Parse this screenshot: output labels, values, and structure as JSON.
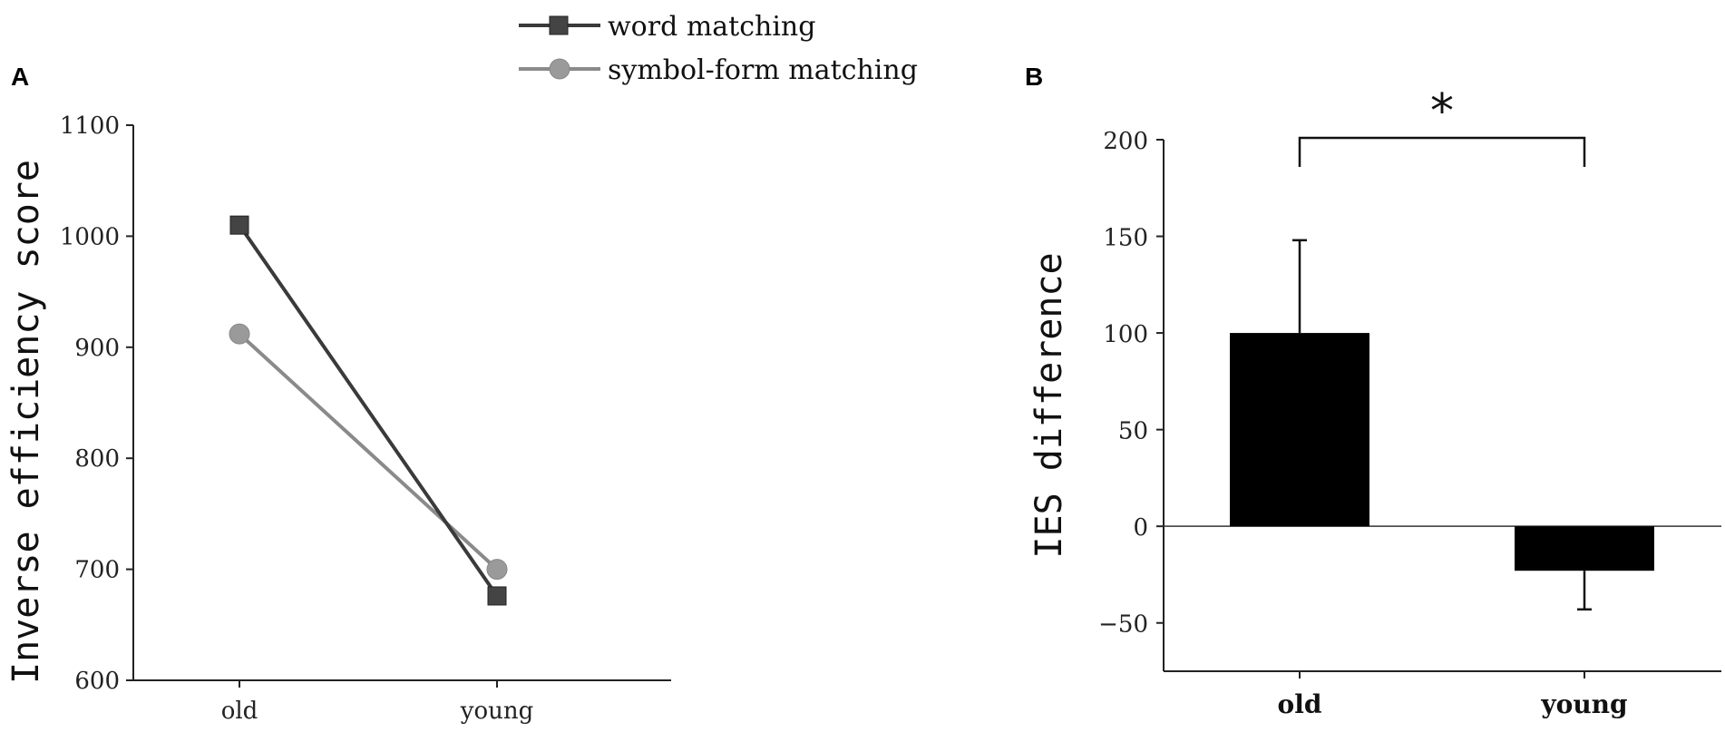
{
  "chart_data": [
    {
      "panel": "A",
      "type": "line",
      "ylabel": "Inverse efficiency score",
      "xlabel": "",
      "categories": [
        "old",
        "young"
      ],
      "yticks": [
        "600",
        "700",
        "800",
        "900",
        "1000",
        "1100"
      ],
      "ylim": [
        600,
        1100
      ],
      "legend": "top",
      "series": [
        {
          "name": "word matching",
          "values": [
            1010,
            676
          ],
          "color": "#3a3a3a",
          "marker": "square"
        },
        {
          "name": "symbol-form matching",
          "values": [
            912,
            700
          ],
          "color": "#8a8a8a",
          "marker": "circle"
        }
      ]
    },
    {
      "panel": "B",
      "type": "bar",
      "ylabel": "IES difference",
      "xlabel": "",
      "categories": [
        "old",
        "young"
      ],
      "values": [
        100,
        -23
      ],
      "error": [
        48,
        20
      ],
      "yticks": [
        "−50",
        "0",
        "50",
        "100",
        "150",
        "200"
      ],
      "ylim": [
        -75,
        200
      ],
      "color": "#000000",
      "significance": {
        "label": "*",
        "between": [
          "old",
          "young"
        ]
      }
    }
  ]
}
